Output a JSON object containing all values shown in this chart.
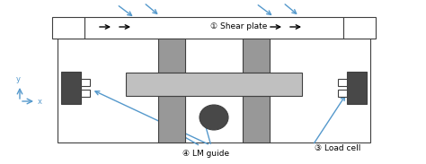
{
  "bg_color": "#ffffff",
  "frame_color": "#404040",
  "gray_light": "#c0c0c0",
  "gray_mid": "#989898",
  "gray_dark": "#484848",
  "arrow_color": "#5599cc",
  "label_shear": "① Shear plate",
  "label_lm_on": "④ LM guide",
  "label_lm_below": "④ LM guide",
  "label_load": "③ Load cell",
  "figsize": [
    4.74,
    1.83
  ],
  "dpi": 100
}
